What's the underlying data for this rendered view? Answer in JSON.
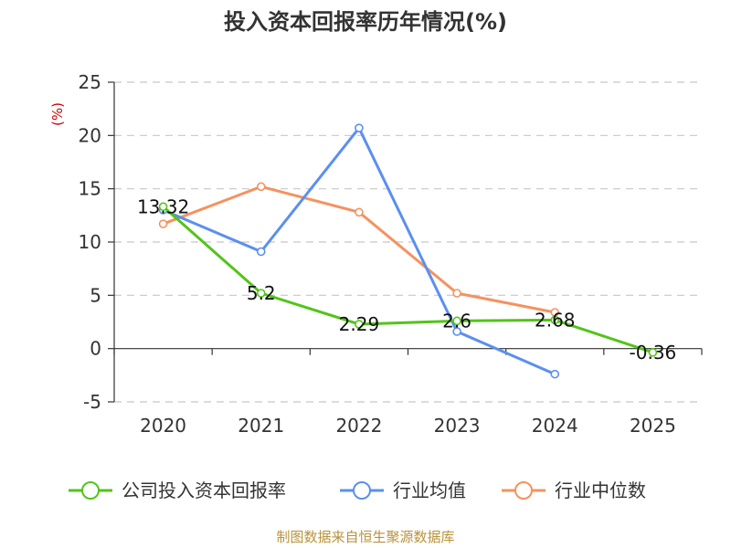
{
  "chart_data": {
    "type": "line",
    "title": "投入资本回报率历年情况(%)",
    "ylabel": "(%)",
    "xlabel": "",
    "x": [
      "2020",
      "2021",
      "2022",
      "2023",
      "2024",
      "2025"
    ],
    "ylim": [
      -5,
      25
    ],
    "yticks": [
      -5,
      0,
      5,
      10,
      15,
      20,
      25
    ],
    "grid": true,
    "legend_position": "bottom",
    "series": [
      {
        "name": "公司投入资本回报率",
        "color": "#52c41a",
        "values": [
          13.32,
          5.2,
          2.29,
          2.6,
          2.68,
          -0.36
        ],
        "labels": [
          "13.32",
          "5.2",
          "2.29",
          "2.6",
          "2.68",
          "-0.36"
        ]
      },
      {
        "name": "行业均值",
        "color": "#5b8ff0",
        "values": [
          13.0,
          9.1,
          20.7,
          1.6,
          -2.4,
          null
        ]
      },
      {
        "name": "行业中位数",
        "color": "#f5925f",
        "values": [
          11.7,
          15.2,
          12.8,
          5.2,
          3.4,
          null
        ]
      }
    ]
  },
  "source": "制图数据来自恒生聚源数据库"
}
